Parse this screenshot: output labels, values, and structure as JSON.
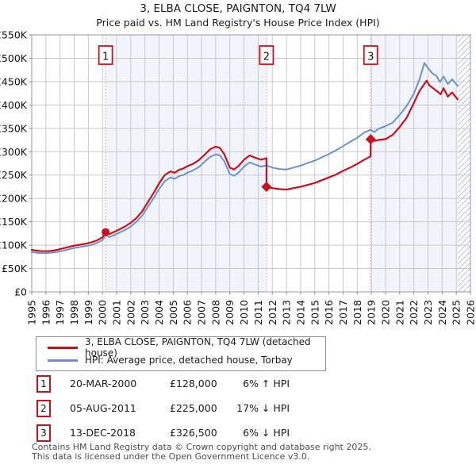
{
  "header": {
    "title": "3, ELBA CLOSE, PAIGNTON, TQ4 7LW",
    "subtitle": "Price paid vs. HM Land Registry's House Price Index (HPI)"
  },
  "chart_data": {
    "type": "line",
    "x_axis": {
      "min": 1995,
      "max": 2026,
      "tick_years": [
        1995,
        1996,
        1997,
        1998,
        1999,
        2000,
        2001,
        2002,
        2003,
        2004,
        2005,
        2006,
        2007,
        2008,
        2009,
        2010,
        2011,
        2012,
        2013,
        2014,
        2015,
        2016,
        2017,
        2018,
        2019,
        2020,
        2021,
        2022,
        2023,
        2024,
        2025,
        2026
      ]
    },
    "y_axis": {
      "max_k": 550,
      "ticks_k": [
        0,
        50,
        100,
        150,
        200,
        250,
        300,
        350,
        400,
        450,
        500,
        550
      ],
      "tick_labels": [
        "£0",
        "£50K",
        "£100K",
        "£150K",
        "£200K",
        "£250K",
        "£300K",
        "£350K",
        "£400K",
        "£450K",
        "£500K",
        "£550K"
      ]
    },
    "series": [
      {
        "name": "3, ELBA CLOSE, PAIGNTON, TQ4 7LW (detached house)",
        "color": "#c8101e",
        "width": 2.2,
        "points_k": [
          [
            1995.0,
            90
          ],
          [
            1995.3,
            88.5
          ],
          [
            1995.6,
            87.5
          ],
          [
            1996.0,
            87
          ],
          [
            1996.4,
            88
          ],
          [
            1996.8,
            90
          ],
          [
            1997.2,
            93
          ],
          [
            1997.6,
            96
          ],
          [
            1998.0,
            99
          ],
          [
            1998.4,
            101
          ],
          [
            1998.8,
            103
          ],
          [
            1999.2,
            106
          ],
          [
            1999.6,
            110
          ],
          [
            2000.0,
            117
          ],
          [
            2000.22,
            128
          ],
          [
            2000.5,
            124
          ],
          [
            2000.8,
            128
          ],
          [
            2001.2,
            134
          ],
          [
            2001.6,
            140
          ],
          [
            2002.0,
            148
          ],
          [
            2002.4,
            158
          ],
          [
            2002.8,
            172
          ],
          [
            2003.2,
            192
          ],
          [
            2003.6,
            211
          ],
          [
            2004.0,
            232
          ],
          [
            2004.4,
            250
          ],
          [
            2004.8,
            258
          ],
          [
            2005.1,
            255
          ],
          [
            2005.4,
            261
          ],
          [
            2005.7,
            264
          ],
          [
            2006.0,
            269
          ],
          [
            2006.4,
            274
          ],
          [
            2006.8,
            282
          ],
          [
            2007.2,
            293
          ],
          [
            2007.6,
            305
          ],
          [
            2008.0,
            311
          ],
          [
            2008.3,
            308
          ],
          [
            2008.6,
            295
          ],
          [
            2009.0,
            266
          ],
          [
            2009.3,
            262
          ],
          [
            2009.6,
            269
          ],
          [
            2010.0,
            283
          ],
          [
            2010.4,
            292
          ],
          [
            2010.8,
            287
          ],
          [
            2011.2,
            283
          ],
          [
            2011.59,
            286
          ],
          [
            2011.59,
            225
          ],
          [
            2012.0,
            222
          ],
          [
            2012.5,
            220
          ],
          [
            2013.0,
            219
          ],
          [
            2013.5,
            222
          ],
          [
            2014.0,
            225
          ],
          [
            2014.5,
            229
          ],
          [
            2015.0,
            233
          ],
          [
            2015.5,
            239
          ],
          [
            2016.0,
            245
          ],
          [
            2016.5,
            251
          ],
          [
            2017.0,
            259
          ],
          [
            2017.5,
            266
          ],
          [
            2018.0,
            274
          ],
          [
            2018.5,
            283
          ],
          [
            2018.95,
            290
          ],
          [
            2018.95,
            326.5
          ],
          [
            2019.2,
            323
          ],
          [
            2019.5,
            325
          ],
          [
            2020.0,
            327
          ],
          [
            2020.5,
            336
          ],
          [
            2021.0,
            353
          ],
          [
            2021.5,
            373
          ],
          [
            2022.0,
            404
          ],
          [
            2022.4,
            430
          ],
          [
            2022.9,
            452
          ],
          [
            2023.1,
            442
          ],
          [
            2023.4,
            435
          ],
          [
            2023.7,
            428
          ],
          [
            2023.9,
            423
          ],
          [
            2024.1,
            436
          ],
          [
            2024.4,
            418
          ],
          [
            2024.7,
            427
          ],
          [
            2025.1,
            412
          ]
        ]
      },
      {
        "name": "HPI: Average price, detached house, Torbay",
        "color": "#6b93c9",
        "width": 2,
        "points_k": [
          [
            1995.0,
            85
          ],
          [
            1995.3,
            84
          ],
          [
            1995.6,
            83
          ],
          [
            1996.0,
            83
          ],
          [
            1996.4,
            84
          ],
          [
            1996.8,
            85.5
          ],
          [
            1997.2,
            88
          ],
          [
            1997.6,
            91
          ],
          [
            1998.0,
            94
          ],
          [
            1998.4,
            96
          ],
          [
            1998.8,
            98
          ],
          [
            1999.2,
            100.5
          ],
          [
            1999.6,
            104.5
          ],
          [
            2000.0,
            111
          ],
          [
            2000.22,
            121
          ],
          [
            2000.5,
            117.5
          ],
          [
            2000.8,
            121
          ],
          [
            2001.2,
            127
          ],
          [
            2001.6,
            132.5
          ],
          [
            2002.0,
            140
          ],
          [
            2002.4,
            150
          ],
          [
            2002.8,
            163
          ],
          [
            2003.2,
            182
          ],
          [
            2003.6,
            200
          ],
          [
            2004.0,
            220
          ],
          [
            2004.4,
            237
          ],
          [
            2004.8,
            245
          ],
          [
            2005.1,
            242
          ],
          [
            2005.4,
            247.5
          ],
          [
            2005.7,
            250
          ],
          [
            2006.0,
            255
          ],
          [
            2006.4,
            260
          ],
          [
            2006.8,
            267
          ],
          [
            2007.2,
            278
          ],
          [
            2007.6,
            289
          ],
          [
            2008.0,
            294.5
          ],
          [
            2008.3,
            292
          ],
          [
            2008.6,
            280
          ],
          [
            2009.0,
            252
          ],
          [
            2009.3,
            248.5
          ],
          [
            2009.6,
            255
          ],
          [
            2010.0,
            268
          ],
          [
            2010.4,
            277
          ],
          [
            2010.8,
            272.5
          ],
          [
            2011.2,
            268
          ],
          [
            2011.59,
            271
          ],
          [
            2012.0,
            266
          ],
          [
            2012.5,
            263
          ],
          [
            2013.0,
            262
          ],
          [
            2013.5,
            266
          ],
          [
            2014.0,
            270
          ],
          [
            2014.5,
            276
          ],
          [
            2015.0,
            281
          ],
          [
            2015.5,
            288
          ],
          [
            2016.0,
            295
          ],
          [
            2016.5,
            303
          ],
          [
            2017.0,
            312
          ],
          [
            2017.5,
            321
          ],
          [
            2018.0,
            330
          ],
          [
            2018.5,
            341
          ],
          [
            2018.95,
            347
          ],
          [
            2019.2,
            342
          ],
          [
            2019.5,
            349
          ],
          [
            2020.0,
            355
          ],
          [
            2020.5,
            362
          ],
          [
            2021.0,
            379
          ],
          [
            2021.5,
            398
          ],
          [
            2022.0,
            424
          ],
          [
            2022.4,
            455
          ],
          [
            2022.75,
            490
          ],
          [
            2023.0,
            479
          ],
          [
            2023.3,
            468
          ],
          [
            2023.6,
            462
          ],
          [
            2023.85,
            449
          ],
          [
            2024.1,
            461
          ],
          [
            2024.4,
            445
          ],
          [
            2024.7,
            455
          ],
          [
            2025.1,
            441
          ]
        ]
      }
    ],
    "sales": [
      {
        "num": "1",
        "date": "20-MAR-2000",
        "price": "£128,000",
        "price_k": 128,
        "year": 2000.22,
        "vs_hpi": "6% ↑ HPI",
        "marker": "circle"
      },
      {
        "num": "2",
        "date": "05-AUG-2011",
        "price": "£225,000",
        "price_k": 225,
        "year": 2011.59,
        "vs_hpi": "17% ↓ HPI",
        "marker": "diamond"
      },
      {
        "num": "3",
        "date": "13-DEC-2018",
        "price": "£326,500",
        "price_k": 326.5,
        "year": 2018.95,
        "vs_hpi": "6% ↓ HPI",
        "marker": "diamond"
      }
    ],
    "bands": [
      [
        2000.22,
        2011.59
      ],
      [
        2018.95,
        2025.1
      ]
    ],
    "hatch_span": [
      2025.1,
      2026
    ],
    "band_color": "#f2f4fb",
    "grid_color": "#c9c9c9",
    "sale_line_color": "#ef8c8c",
    "legend_position": "bottom"
  },
  "footer": {
    "line1": "Contains HM Land Registry data © Crown copyright and database right 2025.",
    "line2": "This data is licensed under the Open Government Licence v3.0."
  }
}
